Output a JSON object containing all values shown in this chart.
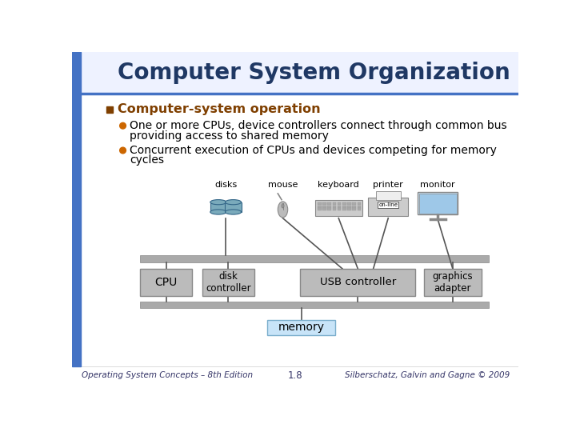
{
  "title": "Computer System Organization",
  "title_color": "#1F3864",
  "title_fontsize": 20,
  "bg_color": "#FFFFFF",
  "left_bar_color": "#4472C4",
  "header_line_color": "#4472C4",
  "bullet1_text": "Computer-system operation",
  "bullet1_color": "#7F3F00",
  "bullet2_text": "One or more CPUs, device controllers connect through common bus\nproviding access to shared memory",
  "bullet3_text": "Concurrent execution of CPUs and devices competing for memory\ncycles",
  "bullet_dot_color": "#CC6600",
  "bullet_text_color": "#000000",
  "footer_left": "Operating System Concepts – 8th Edition",
  "footer_center": "1.8",
  "footer_right": "Silberschatz, Galvin and Gagne © 2009",
  "footer_color": "#333366",
  "footer_fontsize": 7.5,
  "diagram_box_fill": "#BBBBBB",
  "diagram_box_border": "#888888",
  "diagram_memory_fill": "#C8E4F8",
  "diagram_memory_border": "#7AAECC",
  "diagram_label_color": "#000000",
  "diagram_line_color": "#555555",
  "disk_fill": "#7AAABB",
  "disk_border": "#336688",
  "monitor_fill": "#C8E4F8",
  "monitor_border": "#888888",
  "printer_fill": "#BBBBBB",
  "mouse_fill": "#BBBBBB"
}
